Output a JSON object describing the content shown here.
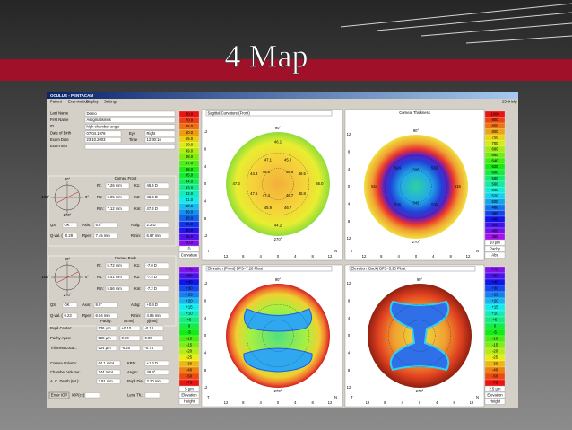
{
  "slide": {
    "title": "4 Map"
  },
  "window": {
    "title": "OCULUS - PENTACAM",
    "menu": [
      "Patient",
      "Examination",
      "Display",
      "Settings"
    ],
    "right_menu": [
      "25%",
      "Help"
    ]
  },
  "patient": {
    "fields": [
      [
        "Last Name",
        "Demo"
      ],
      [
        "First Name",
        "Astigmatismus"
      ],
      [
        "ID",
        "high chamber angle"
      ],
      [
        "Date of Birth",
        "07.04.1978",
        "Eye",
        "Right"
      ],
      [
        "Exam Date",
        "23.10.2003",
        "Time",
        "12:30:16"
      ],
      [
        "Exam Info"
      ]
    ]
  },
  "cornea_front": {
    "title": "Cornea Front",
    "rows": [
      [
        "Rf:",
        "7.26 mm",
        "K1:",
        "46.4 D"
      ],
      [
        "Rs:",
        "6.95 mm",
        "K2:",
        "48.6 D"
      ],
      [
        "Rm:",
        "7.12 mm",
        "Km:",
        "47.4 D"
      ]
    ],
    "wide_rows": [
      [
        "QS:",
        "OK",
        "Axis:",
        "5.9°",
        "Astig:",
        "2.2 D"
      ],
      [
        "Q-val. (30°):",
        "-0.29",
        "Rper:",
        "7.45 mm",
        "Rmin:",
        "6.87 mm"
      ]
    ]
  },
  "cornea_back": {
    "title": "Cornea Back",
    "rows": [
      [
        "Rf:",
        "5.72 mm",
        "K1:",
        "-7.0 D"
      ],
      [
        "Rs:",
        "5.41 mm",
        "K2:",
        "-7.4 D"
      ],
      [
        "Rm:",
        "5.56 mm",
        "Km:",
        "-7.2 D"
      ]
    ],
    "wide_rows": [
      [
        "QS:",
        "OK",
        "Axis:",
        "8.9°",
        "Astig:",
        "+0.4 D"
      ],
      [
        "Q-val. (30°):",
        "0.23",
        "Rper:",
        "6.04 mm",
        "Rmin:",
        "4.85 mm"
      ]
    ]
  },
  "dial_labels": [
    "90°",
    "0°",
    "180°",
    "270°"
  ],
  "pachy": {
    "header": [
      "Pachy:",
      "x[mm]",
      "y[mm]"
    ],
    "rows": [
      [
        "Pupil Center:",
        "536 µm",
        "+0.10",
        "-0.18"
      ],
      [
        "Pachy Apex:",
        "528 µm",
        "0.00",
        "0.00"
      ],
      [
        "Thinnest Locat.:",
        "524 µm",
        "-0.20",
        "-0.74"
      ]
    ]
  },
  "volumes": [
    [
      "Cornea Volume:",
      "64.1 mm³",
      "KPD:",
      "+1.2 D"
    ],
    [
      "Chamber Volume:",
      "244 mm³",
      "Angle:",
      "49.9°"
    ],
    [
      "A. C. Depth (Int.):",
      "3.91 mm",
      "Pupil Dia:",
      "3.20 mm"
    ]
  ],
  "footer": {
    "button": "Enter IOP",
    "labels": [
      "IOP(cc):",
      "Lens Th.:"
    ]
  },
  "axis": {
    "ticks": [
      "12",
      "8",
      "4",
      "0",
      "4",
      "8",
      "12"
    ],
    "temporal": "T",
    "nasal": "N",
    "top": "90°",
    "bottom": "270°"
  },
  "maps": [
    {
      "title": "Sagittal Curvature (Front)",
      "scale": [
        "80.0",
        "70.0",
        "65.0",
        "60.0",
        "55.0",
        "50.0",
        "49.0",
        "48.0",
        "47.0",
        "46.0",
        "45.0",
        "44.0",
        "43.0",
        "42.0",
        "41.0",
        "40.0",
        "39.0",
        "38.0",
        "35.0",
        "30.0",
        "25.0",
        "20.0"
      ],
      "scale_footer": [
        "D",
        "Curvature"
      ],
      "values": [
        "46.0",
        "45.8",
        "46.7",
        "46.7",
        "44.2",
        "45.9",
        "47.4",
        "47.5",
        "47.3",
        "44.3",
        "46.6",
        "47.1",
        "46.1",
        "45.0",
        "46.6",
        "46.5"
      ]
    },
    {
      "title": "Corneal Thickness",
      "scale": [
        "1000",
        "900",
        "850",
        "800",
        "750",
        "700",
        "680",
        "660",
        "640",
        "620",
        "600",
        "580",
        "560",
        "540",
        "520",
        "500",
        "480",
        "460",
        "440",
        "420",
        "400",
        "350"
      ],
      "scale_footer": [
        "10 µm",
        "Pachy",
        "Abs"
      ],
      "values": [
        "516",
        "530",
        "542",
        "536",
        "544",
        "524",
        "506",
        "533"
      ]
    },
    {
      "title": "Elevation (Front) BFS=7.26 Float",
      "scale": [
        "+75",
        "+50",
        "+40",
        "+30",
        "+25",
        "+20",
        "+15",
        "+10",
        "+5",
        "0",
        "-5",
        "-10",
        "-15",
        "-20",
        "-25",
        "-30",
        "-40",
        "-50",
        "-75"
      ],
      "scale_footer": [
        "5 µm",
        "Elevation",
        "Height"
      ],
      "values": []
    },
    {
      "title": "Elevation (Back) BFS=5.90 Float",
      "scale": [
        "+75",
        "+50",
        "+40",
        "+30",
        "+25",
        "+20",
        "+15",
        "+10",
        "+5",
        "0",
        "-5",
        "-10",
        "-15",
        "-20",
        "-25",
        "-30",
        "-40",
        "-50",
        "-75"
      ],
      "scale_footer": [
        "2.5 µm",
        "Elevation",
        "Height"
      ],
      "values": []
    }
  ]
}
